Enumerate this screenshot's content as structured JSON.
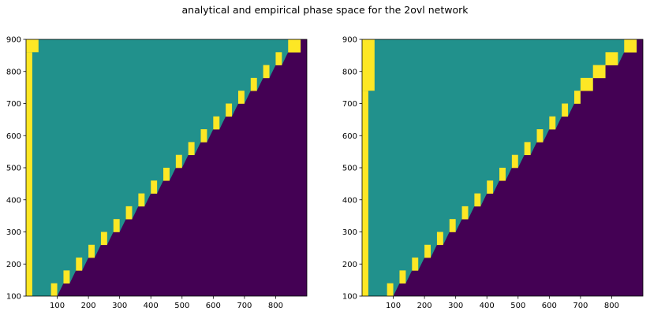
{
  "figure_title": "analytical and empirical phase space for the 2ovl network",
  "colors": {
    "zone_above": "#21918c",
    "zone_below": "#440154",
    "boundary": "#fde725"
  },
  "chart_data": [
    {
      "type": "heatmap",
      "title": "",
      "xlabel": "",
      "ylabel": "",
      "xlim": [
        0,
        900
      ],
      "ylim": [
        100,
        900
      ],
      "xticks": [
        100,
        200,
        300,
        400,
        500,
        600,
        700,
        800
      ],
      "yticks": [
        100,
        200,
        300,
        400,
        500,
        600,
        700,
        800,
        900
      ],
      "grid": false,
      "legend": "none",
      "left_edge_band": [
        [
          0,
          20,
          100,
          860
        ],
        [
          0,
          40,
          860,
          900
        ]
      ],
      "boundary_cells": [
        [
          80,
          100,
          100,
          140
        ],
        [
          120,
          140,
          140,
          180
        ],
        [
          160,
          180,
          180,
          220
        ],
        [
          200,
          220,
          220,
          260
        ],
        [
          240,
          260,
          260,
          300
        ],
        [
          280,
          300,
          300,
          340
        ],
        [
          320,
          340,
          340,
          380
        ],
        [
          360,
          380,
          380,
          420
        ],
        [
          400,
          420,
          420,
          460
        ],
        [
          440,
          460,
          460,
          500
        ],
        [
          480,
          500,
          500,
          540
        ],
        [
          520,
          540,
          540,
          580
        ],
        [
          560,
          580,
          580,
          620
        ],
        [
          600,
          620,
          620,
          660
        ],
        [
          640,
          660,
          660,
          700
        ],
        [
          680,
          700,
          700,
          740
        ],
        [
          720,
          740,
          740,
          780
        ],
        [
          760,
          780,
          780,
          820
        ],
        [
          800,
          820,
          820,
          860
        ],
        [
          840,
          880,
          860,
          900
        ]
      ]
    },
    {
      "type": "heatmap",
      "title": "",
      "xlabel": "",
      "ylabel": "",
      "xlim": [
        0,
        900
      ],
      "ylim": [
        100,
        900
      ],
      "xticks": [
        100,
        200,
        300,
        400,
        500,
        600,
        700,
        800
      ],
      "yticks": [
        100,
        200,
        300,
        400,
        500,
        600,
        700,
        800,
        900
      ],
      "grid": false,
      "legend": "none",
      "left_edge_band": [
        [
          0,
          20,
          100,
          740
        ],
        [
          0,
          40,
          740,
          900
        ]
      ],
      "boundary_cells": [
        [
          80,
          100,
          100,
          140
        ],
        [
          120,
          140,
          140,
          180
        ],
        [
          160,
          180,
          180,
          220
        ],
        [
          200,
          220,
          220,
          260
        ],
        [
          240,
          260,
          260,
          300
        ],
        [
          280,
          300,
          300,
          340
        ],
        [
          320,
          340,
          340,
          380
        ],
        [
          360,
          380,
          380,
          420
        ],
        [
          400,
          420,
          420,
          460
        ],
        [
          440,
          460,
          460,
          500
        ],
        [
          480,
          500,
          500,
          540
        ],
        [
          520,
          540,
          540,
          580
        ],
        [
          560,
          580,
          580,
          620
        ],
        [
          600,
          620,
          620,
          660
        ],
        [
          640,
          660,
          660,
          700
        ],
        [
          680,
          700,
          700,
          740
        ],
        [
          700,
          740,
          740,
          780
        ],
        [
          740,
          780,
          780,
          820
        ],
        [
          780,
          820,
          820,
          860
        ],
        [
          840,
          880,
          860,
          900
        ]
      ]
    }
  ]
}
